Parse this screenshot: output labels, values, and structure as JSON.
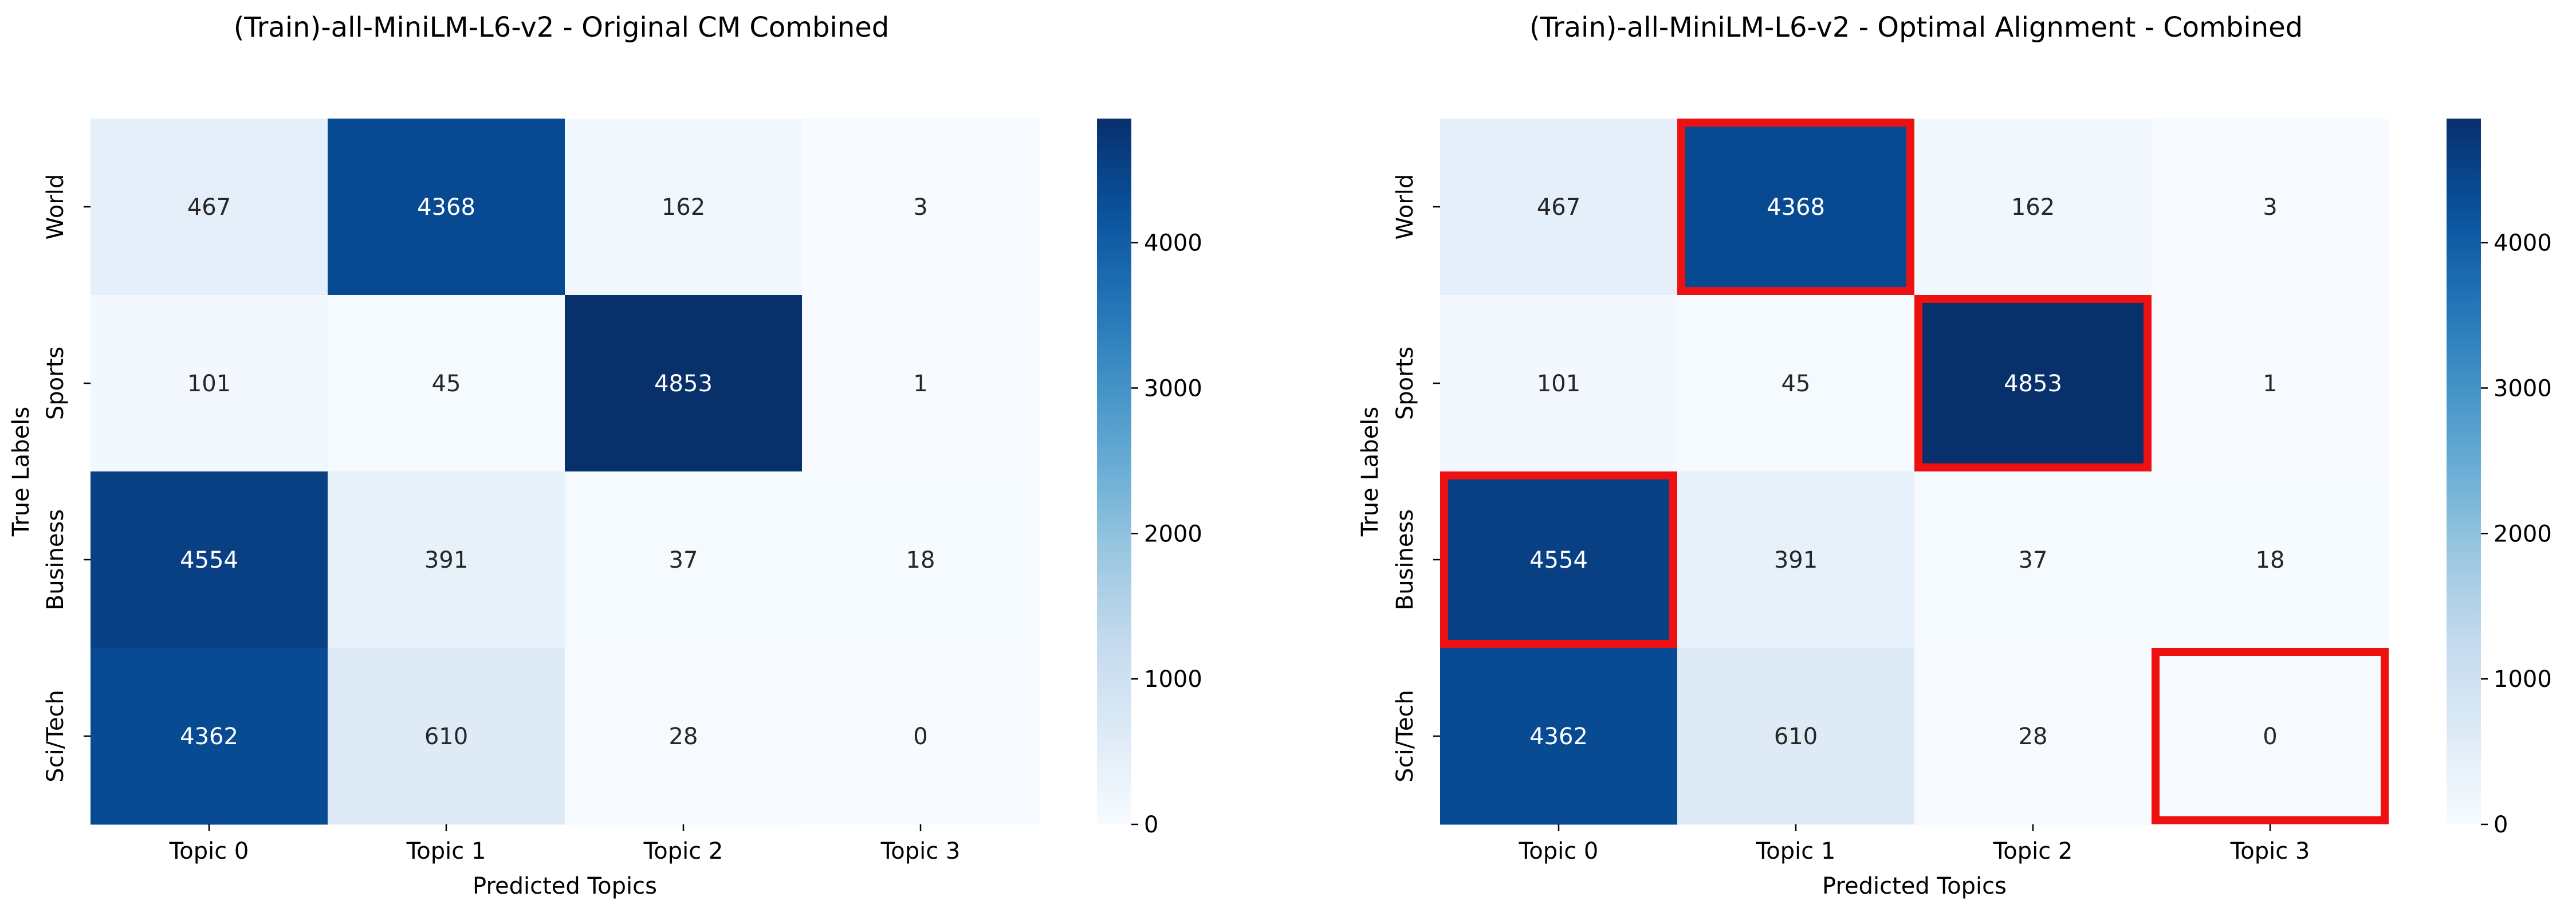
{
  "chart_data": [
    {
      "type": "heatmap",
      "title": "(Train)-all-MiniLM-L6-v2 - Original CM Combined",
      "xlabel": "Predicted Topics",
      "ylabel": "True Labels",
      "x_categories": [
        "Topic 0",
        "Topic 1",
        "Topic 2",
        "Topic 3"
      ],
      "y_categories": [
        "World",
        "Sports",
        "Business",
        "Sci/Tech"
      ],
      "values": [
        [
          467,
          4368,
          162,
          3
        ],
        [
          101,
          45,
          4853,
          1
        ],
        [
          4554,
          391,
          37,
          18
        ],
        [
          4362,
          610,
          28,
          0
        ]
      ],
      "colorbar": {
        "vmin": 0,
        "vmax": 4853,
        "ticks": [
          0,
          1000,
          2000,
          3000,
          4000
        ]
      },
      "colormap": "Blues",
      "highlighted_cells": []
    },
    {
      "type": "heatmap",
      "title": "(Train)-all-MiniLM-L6-v2 - Optimal Alignment - Combined",
      "xlabel": "Predicted Topics",
      "ylabel": "True Labels",
      "x_categories": [
        "Topic 0",
        "Topic 1",
        "Topic 2",
        "Topic 3"
      ],
      "y_categories": [
        "World",
        "Sports",
        "Business",
        "Sci/Tech"
      ],
      "values": [
        [
          467,
          4368,
          162,
          3
        ],
        [
          101,
          45,
          4853,
          1
        ],
        [
          4554,
          391,
          37,
          18
        ],
        [
          4362,
          610,
          28,
          0
        ]
      ],
      "colorbar": {
        "vmin": 0,
        "vmax": 4853,
        "ticks": [
          0,
          1000,
          2000,
          3000,
          4000
        ]
      },
      "colormap": "Blues",
      "highlighted_cells": [
        [
          0,
          1
        ],
        [
          1,
          2
        ],
        [
          2,
          0
        ],
        [
          3,
          3
        ]
      ],
      "highlight_color": "#ee1111"
    }
  ]
}
